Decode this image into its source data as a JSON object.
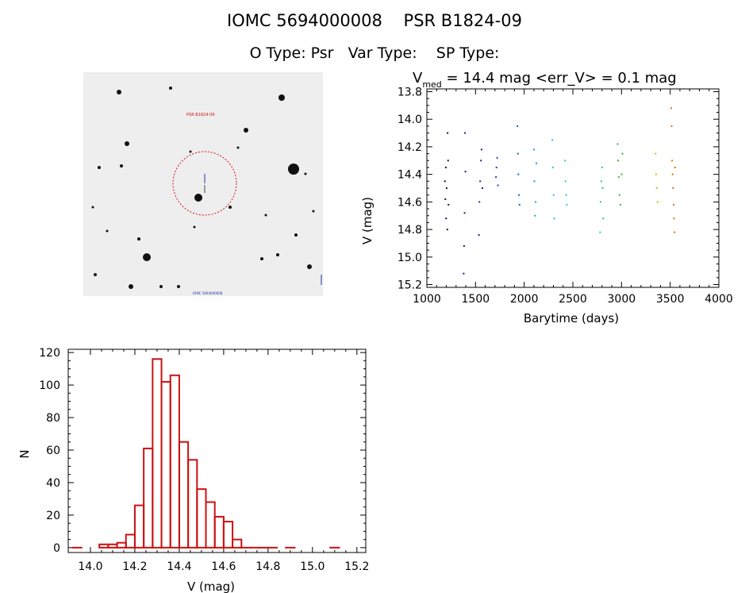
{
  "header": {
    "title_line1": "IOMC 5694000008    PSR B1824-09",
    "title_line2": "O Type: Psr   Var Type:    SP Type:"
  },
  "finder_chart": {
    "labels": [
      "PSR B1824-09",
      "IOMC 5694000008"
    ],
    "circle_color": "#d01010",
    "label_color": "#d01010",
    "corner_label_color": "#2233aa"
  },
  "colors": {
    "histogram": "#cc1111",
    "axis": "#000000"
  },
  "chart_data": [
    {
      "id": "lightcurve",
      "type": "scatter",
      "title_prefix": "V",
      "title_subscript": "med",
      "title_suffix": " = 14.4 mag <err_V> = 0.1 mag",
      "xlabel": "Barytime (days)",
      "ylabel": "V (mag)",
      "xlim": [
        1000,
        4000
      ],
      "ylim": [
        15.22,
        13.78
      ],
      "xticks": [
        1000,
        1500,
        2000,
        2500,
        3000,
        3500,
        4000
      ],
      "yticks": [
        13.8,
        14.0,
        14.2,
        14.4,
        14.6,
        14.8,
        15.0,
        15.2
      ],
      "ytick_labels": [
        "13.8",
        "14.0",
        "14.2",
        "14.4",
        "14.6",
        "14.8",
        "15.0",
        "15.2"
      ],
      "series": [
        {
          "name": "g1",
          "color": "#2a0050",
          "x": [
            1185,
            1190,
            1195,
            1198,
            1203,
            1210,
            1213,
            1218,
            1222
          ],
          "y": [
            14.45,
            14.58,
            14.35,
            14.72,
            14.5,
            14.8,
            14.1,
            14.3,
            14.62
          ]
        },
        {
          "name": "g2",
          "color": "#3a0a78",
          "x": [
            1378,
            1382,
            1388,
            1392,
            1396
          ],
          "y": [
            15.12,
            14.92,
            14.68,
            14.1,
            14.38
          ]
        },
        {
          "name": "g3",
          "color": "#2a2090",
          "x": [
            1535,
            1540,
            1548,
            1556,
            1562,
            1570
          ],
          "y": [
            14.84,
            14.6,
            14.45,
            14.3,
            14.22,
            14.5
          ]
        },
        {
          "name": "g4",
          "color": "#1840b0",
          "x": [
            1710,
            1715,
            1722,
            1730
          ],
          "y": [
            14.42,
            14.35,
            14.28,
            14.48
          ]
        },
        {
          "name": "g5",
          "color": "#1060c0",
          "x": [
            1930,
            1935,
            1940,
            1946,
            1952
          ],
          "y": [
            14.05,
            14.25,
            14.4,
            14.55,
            14.62
          ]
        },
        {
          "name": "g6",
          "color": "#10a0d0",
          "x": [
            2100,
            2105,
            2110,
            2118,
            2125
          ],
          "y": [
            14.22,
            14.45,
            14.7,
            14.6,
            14.32
          ]
        },
        {
          "name": "g7",
          "color": "#20c0e0",
          "x": [
            2290,
            2295,
            2302,
            2308
          ],
          "y": [
            14.15,
            14.35,
            14.55,
            14.72
          ]
        },
        {
          "name": "g8",
          "color": "#20d0c0",
          "x": [
            2420,
            2425,
            2432,
            2438
          ],
          "y": [
            14.3,
            14.45,
            14.55,
            14.62
          ]
        },
        {
          "name": "g9",
          "color": "#20d080",
          "x": [
            2780,
            2785,
            2792,
            2800,
            2806,
            2812
          ],
          "y": [
            14.82,
            14.6,
            14.45,
            14.35,
            14.5,
            14.72
          ]
        },
        {
          "name": "g10",
          "color": "#30c030",
          "x": [
            2960,
            2965,
            2972,
            2980,
            2988,
            3000,
            3010
          ],
          "y": [
            14.18,
            14.3,
            14.42,
            14.55,
            14.62,
            14.4,
            14.25
          ]
        },
        {
          "name": "g11",
          "color": "#d0c000",
          "x": [
            3350,
            3355,
            3362,
            3370
          ],
          "y": [
            14.25,
            14.4,
            14.5,
            14.6
          ]
        },
        {
          "name": "g12",
          "color": "#e07000",
          "x": [
            3510,
            3515,
            3520,
            3525,
            3530,
            3535,
            3540,
            3545,
            3550
          ],
          "y": [
            13.92,
            14.05,
            14.3,
            14.4,
            14.5,
            14.62,
            14.72,
            14.82,
            14.35
          ]
        }
      ]
    },
    {
      "id": "histogram",
      "type": "bar",
      "xlabel": "V (mag)",
      "ylabel": "N",
      "xlim": [
        13.9,
        15.24
      ],
      "ylim": [
        -3,
        122
      ],
      "xticks": [
        14.0,
        14.2,
        14.4,
        14.6,
        14.8,
        15.0,
        15.2
      ],
      "xtick_labels": [
        "14.0",
        "14.2",
        "14.4",
        "14.6",
        "14.8",
        "15.0",
        "15.2"
      ],
      "yticks": [
        0,
        20,
        40,
        60,
        80,
        100,
        120
      ],
      "ytick_labels": [
        "0",
        "20",
        "40",
        "60",
        "80",
        "100",
        "120"
      ],
      "bin_starts": [
        13.92,
        14.04,
        14.08,
        14.12,
        14.16,
        14.2,
        14.24,
        14.28,
        14.32,
        14.36,
        14.4,
        14.44,
        14.48,
        14.52,
        14.56,
        14.6,
        14.64,
        14.68,
        14.72,
        14.76,
        14.8,
        14.88,
        15.08
      ],
      "bin_width": 0.04,
      "values": [
        0,
        2,
        2,
        3,
        8,
        26,
        61,
        116,
        102,
        106,
        65,
        54,
        36,
        28,
        19,
        16,
        5,
        0,
        0,
        0,
        0,
        0,
        0
      ]
    }
  ]
}
